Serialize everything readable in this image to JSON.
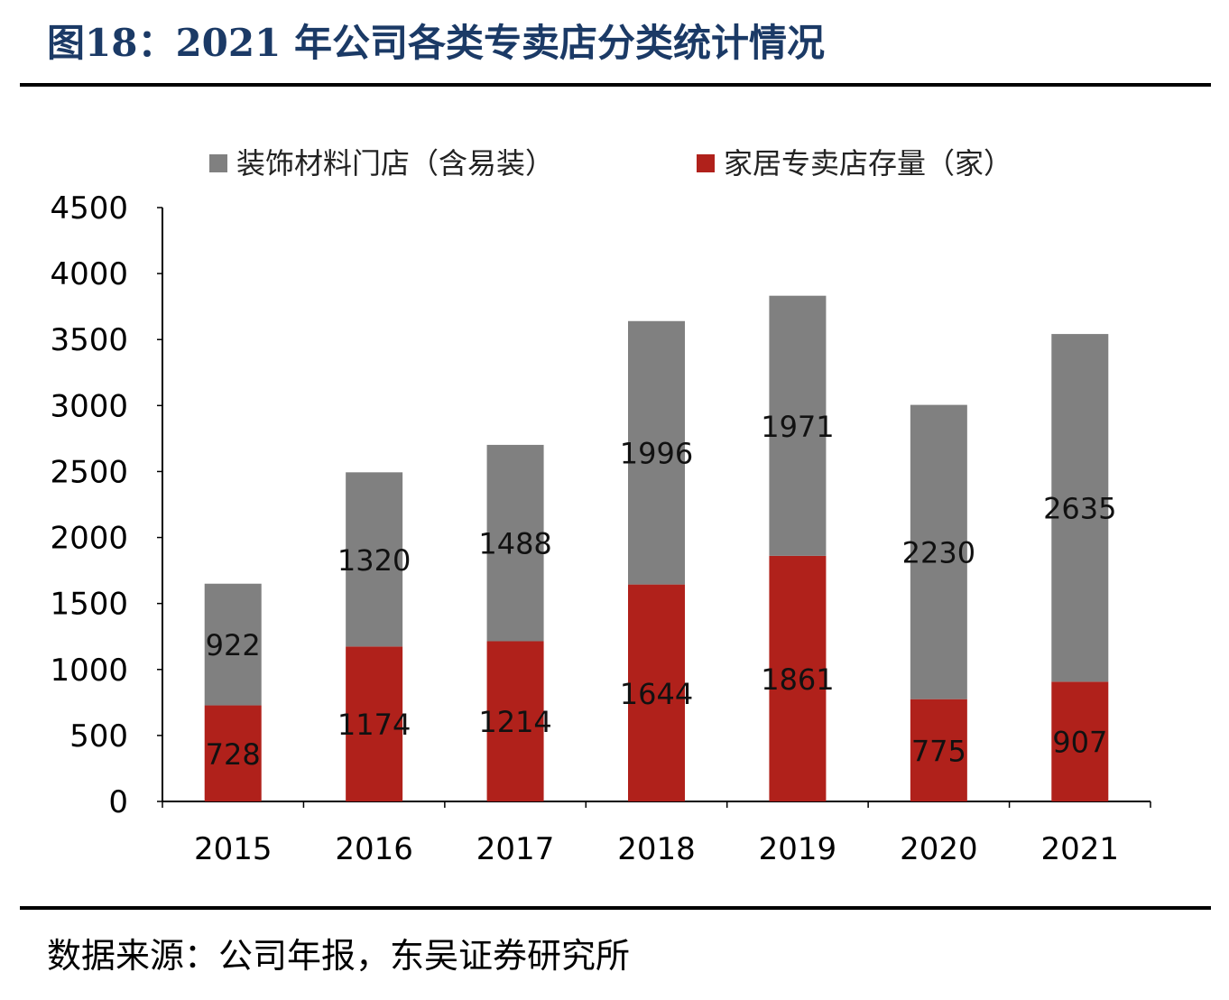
{
  "title": "图18：2021 年公司各类专卖店分类统计情况",
  "source": "数据来源：公司年报，东吴证券研究所",
  "chart_data": {
    "type": "bar",
    "stacked": true,
    "categories": [
      "2015",
      "2016",
      "2017",
      "2018",
      "2019",
      "2020",
      "2021"
    ],
    "series": [
      {
        "name": "家居专卖店存量（家）",
        "color": "#b0211b",
        "values": [
          728,
          1174,
          1214,
          1644,
          1861,
          775,
          907
        ]
      },
      {
        "name": "装饰材料门店（含易装）",
        "color": "#808080",
        "values": [
          922,
          1320,
          1488,
          1996,
          1971,
          2230,
          2635
        ]
      }
    ],
    "legend_order": [
      1,
      0
    ],
    "ylim": [
      0,
      4500
    ],
    "yticks": [
      0,
      500,
      1000,
      1500,
      2000,
      2500,
      3000,
      3500,
      4000,
      4500
    ],
    "grid": false,
    "legend": "top",
    "data_labels": true
  }
}
